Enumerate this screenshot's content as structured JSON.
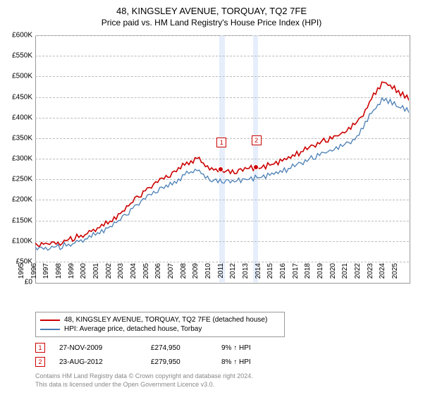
{
  "title": "48, KINGSLEY AVENUE, TORQUAY, TQ2 7FE",
  "subtitle": "Price paid vs. HM Land Registry's House Price Index (HPI)",
  "chart": {
    "type": "line",
    "background_color": "#ffffff",
    "grid_color": "#bbbbbb",
    "border_color": "#999999",
    "ylim": [
      0,
      600000
    ],
    "ytick_step": 50000,
    "ytick_labels": [
      "£0",
      "£50K",
      "£100K",
      "£150K",
      "£200K",
      "£250K",
      "£300K",
      "£350K",
      "£400K",
      "£450K",
      "£500K",
      "£550K",
      "£600K"
    ],
    "xticks": [
      "1995",
      "1996",
      "1997",
      "1998",
      "1999",
      "2000",
      "2001",
      "2002",
      "2003",
      "2004",
      "2005",
      "2006",
      "2007",
      "2008",
      "2009",
      "2010",
      "2011",
      "2012",
      "2013",
      "2014",
      "2015",
      "2016",
      "2017",
      "2018",
      "2019",
      "2020",
      "2021",
      "2022",
      "2023",
      "2024",
      "2025"
    ],
    "highlight_bands": [
      {
        "x_start": 14.8,
        "x_end": 15.2
      },
      {
        "x_start": 17.5,
        "x_end": 17.9
      }
    ],
    "series": [
      {
        "name": "property",
        "label": "48, KINGSLEY AVENUE, TORQUAY, TQ2 7FE (detached house)",
        "color": "#cc0000",
        "line_width": 1.6,
        "points": [
          [
            0,
            95000
          ],
          [
            1,
            98000
          ],
          [
            2,
            100000
          ],
          [
            3,
            110000
          ],
          [
            4,
            120000
          ],
          [
            5,
            135000
          ],
          [
            6,
            150000
          ],
          [
            7,
            175000
          ],
          [
            8,
            205000
          ],
          [
            9,
            230000
          ],
          [
            10,
            250000
          ],
          [
            11,
            265000
          ],
          [
            12,
            290000
          ],
          [
            13,
            305000
          ],
          [
            14,
            280000
          ],
          [
            15,
            275000
          ],
          [
            16,
            272000
          ],
          [
            17,
            280000
          ],
          [
            18,
            282000
          ],
          [
            19,
            290000
          ],
          [
            20,
            300000
          ],
          [
            21,
            315000
          ],
          [
            22,
            330000
          ],
          [
            23,
            345000
          ],
          [
            24,
            355000
          ],
          [
            25,
            370000
          ],
          [
            26,
            395000
          ],
          [
            27,
            450000
          ],
          [
            28,
            490000
          ],
          [
            29,
            470000
          ],
          [
            30,
            450000
          ]
        ]
      },
      {
        "name": "hpi",
        "label": "HPI: Average price, detached house, Torbay",
        "color": "#4a7fb5",
        "line_width": 1.3,
        "points": [
          [
            0,
            85000
          ],
          [
            1,
            88000
          ],
          [
            2,
            90000
          ],
          [
            3,
            98000
          ],
          [
            4,
            108000
          ],
          [
            5,
            122000
          ],
          [
            6,
            138000
          ],
          [
            7,
            160000
          ],
          [
            8,
            188000
          ],
          [
            9,
            210000
          ],
          [
            10,
            228000
          ],
          [
            11,
            242000
          ],
          [
            12,
            265000
          ],
          [
            13,
            278000
          ],
          [
            14,
            252000
          ],
          [
            15,
            250000
          ],
          [
            16,
            248000
          ],
          [
            17,
            255000
          ],
          [
            18,
            258000
          ],
          [
            19,
            265000
          ],
          [
            20,
            275000
          ],
          [
            21,
            288000
          ],
          [
            22,
            302000
          ],
          [
            23,
            315000
          ],
          [
            24,
            325000
          ],
          [
            25,
            338000
          ],
          [
            26,
            362000
          ],
          [
            27,
            415000
          ],
          [
            28,
            450000
          ],
          [
            29,
            435000
          ],
          [
            30,
            418000
          ]
        ]
      }
    ],
    "markers": [
      {
        "id": "1",
        "x": 14.9,
        "y": 275000
      },
      {
        "id": "2",
        "x": 17.7,
        "y": 280000
      }
    ]
  },
  "legend": {
    "items": [
      {
        "color": "#cc0000",
        "label_path": "chart.series.0.label"
      },
      {
        "color": "#4a7fb5",
        "label_path": "chart.series.1.label"
      }
    ]
  },
  "transactions": [
    {
      "id": "1",
      "date": "27-NOV-2009",
      "price": "£274,950",
      "pct": "9% ↑ HPI"
    },
    {
      "id": "2",
      "date": "23-AUG-2012",
      "price": "£279,950",
      "pct": "8% ↑ HPI"
    }
  ],
  "attribution_line1": "Contains HM Land Registry data © Crown copyright and database right 2024.",
  "attribution_line2": "This data is licensed under the Open Government Licence v3.0."
}
